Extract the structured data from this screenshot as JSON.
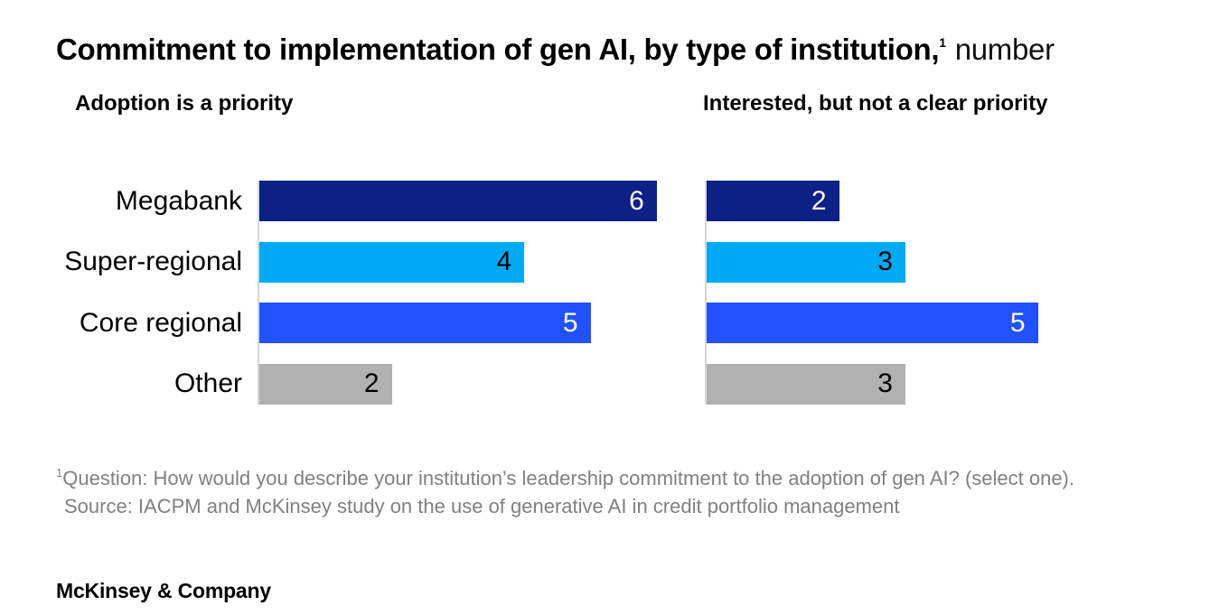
{
  "title": {
    "main": "Commitment to implementation of gen AI, by type of institution,",
    "footnote_marker": "1",
    "unit": "number"
  },
  "panels": [
    {
      "heading": "Adoption is a priority"
    },
    {
      "heading": "Interested, but not a clear priority"
    }
  ],
  "chart_data": {
    "type": "bar",
    "orientation": "horizontal",
    "title": "Commitment to implementation of gen AI, by type of institution, number",
    "categories": [
      "Megabank",
      "Super-regional",
      "Core regional",
      "Other"
    ],
    "series": [
      {
        "name": "Adoption is a priority",
        "values": [
          6,
          4,
          5,
          2
        ]
      },
      {
        "name": "Interested, but not a clear priority",
        "values": [
          2,
          3,
          5,
          3
        ]
      }
    ],
    "xlim": [
      0,
      6
    ],
    "grid": false,
    "legend": false,
    "value_labels": "inside-end",
    "bar_colors": [
      "#0c2085",
      "#00a9f4",
      "#2251ff",
      "#b1b1b1"
    ],
    "value_label_colors": [
      "#ffffff",
      "#000000",
      "#ffffff",
      "#000000"
    ]
  },
  "footnote": {
    "marker": "1",
    "line1": "Question: How would you describe your institution’s leadership commitment to the adoption of gen AI? (select one).",
    "line2": "Source: IACPM and McKinsey study on the use of generative AI in credit portfolio management"
  },
  "footer": {
    "brand": "McKinsey & Company"
  },
  "colors": {
    "background": "#ffffff",
    "text": "#000000",
    "footnote_text": "#808080",
    "axis_line": "#d6d6d6",
    "navy": "#0c2085",
    "light_blue": "#00a9f4",
    "blue": "#2251ff",
    "gray": "#b1b1b1"
  }
}
